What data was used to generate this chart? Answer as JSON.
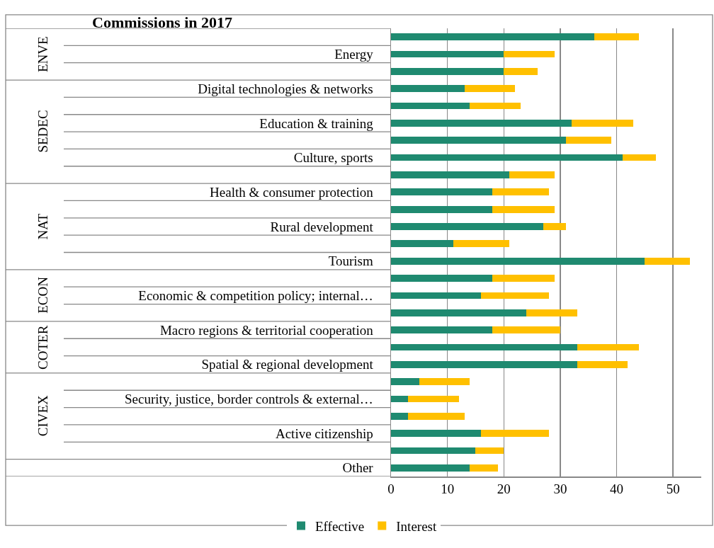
{
  "chart_data": {
    "type": "bar",
    "orientation": "horizontal",
    "stacked": true,
    "title": "Commissions in 2017",
    "categories": [
      null,
      "Energy",
      null,
      "Digital technologies & networks",
      null,
      "Education & training",
      null,
      "Culture, sports",
      null,
      "Health & consumer protection",
      null,
      "Rural development",
      null,
      "Tourism",
      null,
      "Economic & competition policy; internal…",
      null,
      "Macro regions & territorial cooperation",
      null,
      "Spatial & regional development",
      null,
      "Security, justice, border controls & external…",
      null,
      "Active citizenship",
      null,
      "Other"
    ],
    "series": [
      {
        "name": "Effective",
        "color": "#1f8a70",
        "values": [
          36,
          20,
          20,
          13,
          14,
          32,
          31,
          41,
          21,
          18,
          18,
          27,
          11,
          45,
          18,
          16,
          24,
          18,
          33,
          33,
          5,
          3,
          3,
          16,
          15,
          14
        ]
      },
      {
        "name": "Interest",
        "color": "#ffc000",
        "values": [
          8,
          9,
          6,
          9,
          9,
          11,
          8,
          6,
          8,
          10,
          11,
          4,
          10,
          8,
          11,
          12,
          9,
          12,
          11,
          9,
          9,
          9,
          10,
          12,
          5,
          5
        ]
      }
    ],
    "annotations": [
      "ENVE",
      "SEDEC",
      "NAT",
      "ECON",
      "COTER",
      "CIVEX"
    ],
    "xlim": [
      0,
      55
    ],
    "xticks": [
      0,
      10,
      20,
      30,
      40,
      50
    ],
    "grid": "x",
    "legend": "bottom"
  }
}
